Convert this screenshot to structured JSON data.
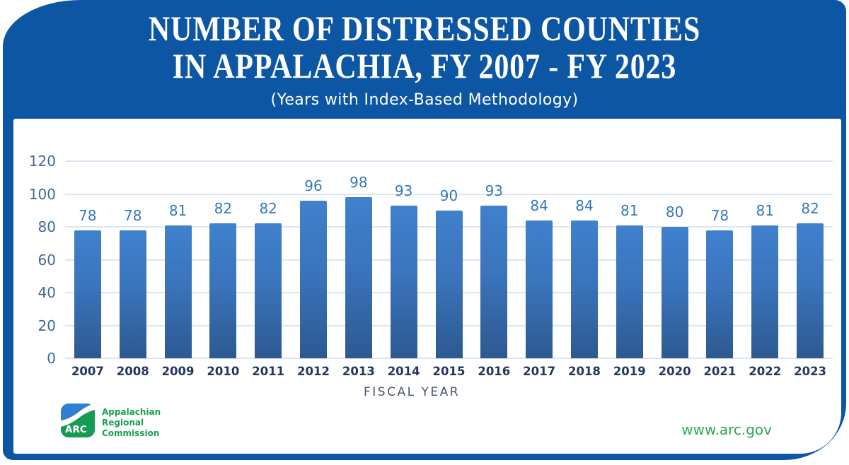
{
  "header": {
    "title_line1": "NUMBER OF DISTRESSED COUNTIES",
    "title_line2": "IN APPALACHIA, FY 2007 - FY 2023",
    "subtitle": "(Years with Index-Based Methodology)"
  },
  "chart_data": {
    "type": "bar",
    "title": "Number of Distressed Counties in Appalachia, FY 2007 - FY 2023",
    "subtitle": "(Years with Index-Based Methodology)",
    "categories": [
      "2007",
      "2008",
      "2009",
      "2010",
      "2011",
      "2012",
      "2013",
      "2014",
      "2015",
      "2016",
      "2017",
      "2018",
      "2019",
      "2020",
      "2021",
      "2022",
      "2023"
    ],
    "values": [
      78,
      78,
      81,
      82,
      82,
      96,
      98,
      93,
      90,
      93,
      84,
      84,
      81,
      80,
      78,
      81,
      82
    ],
    "xlabel": "FISCAL YEAR",
    "ylabel": "",
    "ylim": [
      0,
      120
    ],
    "yticks": [
      0,
      20,
      40,
      60,
      80,
      100,
      120
    ],
    "grid": true,
    "legend": false,
    "data_labels": true
  },
  "footer": {
    "website": "www.arc.gov",
    "logo": {
      "acronym": "ARC",
      "line1": "Appalachian",
      "line2": "Regional",
      "line3": "Commission"
    }
  },
  "colors": {
    "frame_blue": "#0d56a4",
    "bar_top": "#4080cd",
    "bar_bottom": "#2d5990",
    "gridline": "#dbe6f5",
    "value_label": "#3478bd",
    "year_label": "#24375f",
    "ytick_label": "#41699c",
    "axis_title": "#49536b",
    "brand_green": "#1aa14e",
    "logo_blue": "#2f80d0",
    "logo_green": "#169c52"
  }
}
